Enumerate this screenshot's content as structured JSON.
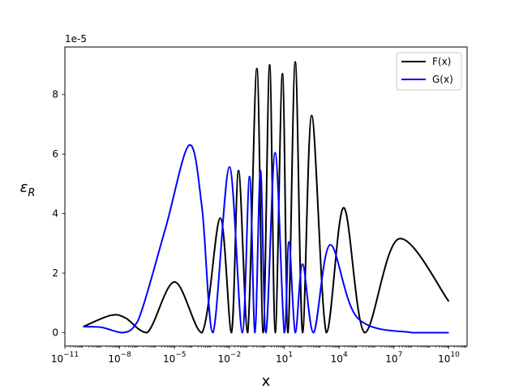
{
  "chart_data": {
    "type": "line",
    "xscale": "log",
    "xlim": [
      1e-11,
      100000000000.0
    ],
    "ylim": [
      -0.45,
      9.6
    ],
    "y_multiplier_label": "1e-5",
    "xlabel": "x",
    "ylabel": "ε_R",
    "ylabel_main": "ε",
    "ylabel_sub": "R",
    "grid": false,
    "legend_position": "top-right",
    "x_ticks": [
      {
        "value": 1e-11,
        "base": "10",
        "exp": "−11"
      },
      {
        "value": 1e-08,
        "base": "10",
        "exp": "−8"
      },
      {
        "value": 1e-05,
        "base": "10",
        "exp": "−5"
      },
      {
        "value": 0.01,
        "base": "10",
        "exp": "−2"
      },
      {
        "value": 10,
        "base": "10",
        "exp": "1"
      },
      {
        "value": 10000.0,
        "base": "10",
        "exp": "4"
      },
      {
        "value": 10000000.0,
        "base": "10",
        "exp": "7"
      },
      {
        "value": 10000000000.0,
        "base": "10",
        "exp": "10"
      }
    ],
    "y_ticks": [
      {
        "value": 0,
        "label": "0"
      },
      {
        "value": 2,
        "label": "2"
      },
      {
        "value": 4,
        "label": "4"
      },
      {
        "value": 6,
        "label": "6"
      },
      {
        "value": 8,
        "label": "8"
      }
    ],
    "series": [
      {
        "name": "F(x)",
        "color": "#000000",
        "points": [
          [
            1e-10,
            0.2
          ],
          [
            3.16e-09,
            0.58
          ],
          [
            2e-08,
            0.5
          ],
          [
            3.16e-07,
            0.0
          ],
          [
            1e-05,
            1.7
          ],
          [
            0.000316,
            0.0
          ],
          [
            0.00316,
            3.85
          ],
          [
            0.013,
            0.0
          ],
          [
            0.0316,
            5.45
          ],
          [
            0.1,
            0.0
          ],
          [
            0.316,
            8.88
          ],
          [
            0.7,
            0.0
          ],
          [
            1.58,
            9.0
          ],
          [
            3.2,
            0.0
          ],
          [
            7.94,
            8.7
          ],
          [
            16.0,
            0.0
          ],
          [
            39.8,
            9.1
          ],
          [
            100.0,
            0.0
          ],
          [
            316.0,
            7.3
          ],
          [
            2000.0,
            0.0
          ],
          [
            17800.0,
            4.2
          ],
          [
            250000.0,
            0.0
          ],
          [
            17800000.0,
            3.15
          ],
          [
            10000000000.0,
            1.05
          ]
        ]
      },
      {
        "name": "G(x)",
        "color": "#0000ff",
        "points": [
          [
            1e-10,
            0.2
          ],
          [
            1e-09,
            0.18
          ],
          [
            1.4e-08,
            0.0
          ],
          [
            1e-07,
            0.4
          ],
          [
            3.16e-06,
            3.5
          ],
          [
            6.3e-05,
            6.3
          ],
          [
            0.000316,
            4.2
          ],
          [
            0.00126,
            0.0
          ],
          [
            0.01,
            5.57
          ],
          [
            0.05,
            0.0
          ],
          [
            0.126,
            5.25
          ],
          [
            0.25,
            0.0
          ],
          [
            0.5,
            5.45
          ],
          [
            1.0,
            0.0
          ],
          [
            3.16,
            6.05
          ],
          [
            10.0,
            0.0
          ],
          [
            18.0,
            3.05
          ],
          [
            40.0,
            0.0
          ],
          [
            100.0,
            2.3
          ],
          [
            400.0,
            0.0
          ],
          [
            3160.0,
            2.95
          ],
          [
            100000.0,
            0.5
          ],
          [
            100000000.0,
            0.0
          ],
          [
            10000000000.0,
            0.0
          ]
        ]
      }
    ]
  }
}
